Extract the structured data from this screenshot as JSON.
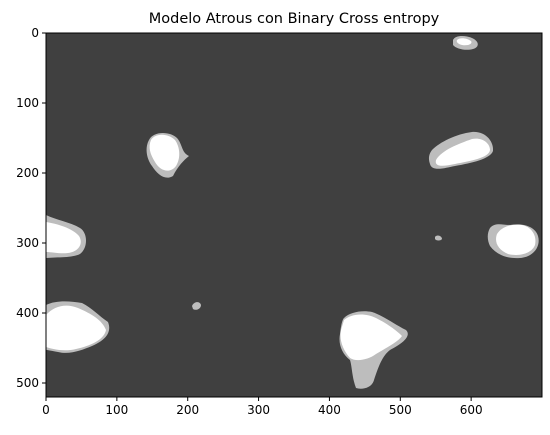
{
  "figure": {
    "title": "Modelo Atrous con Binary Cross entropy"
  },
  "axes": {
    "xlim": [
      0,
      700
    ],
    "ylim": [
      520,
      0
    ],
    "y_inverted": true,
    "x_ticks": [
      0,
      100,
      200,
      300,
      400,
      500,
      600
    ],
    "y_ticks": [
      0,
      100,
      200,
      300,
      400,
      500
    ],
    "grid": false
  },
  "image": {
    "type": "segmentation-mask-overlay",
    "colors": {
      "background": "#404040",
      "overlap": "#ffffff",
      "partial": "#bdbdbd",
      "frame": "#000000"
    }
  }
}
